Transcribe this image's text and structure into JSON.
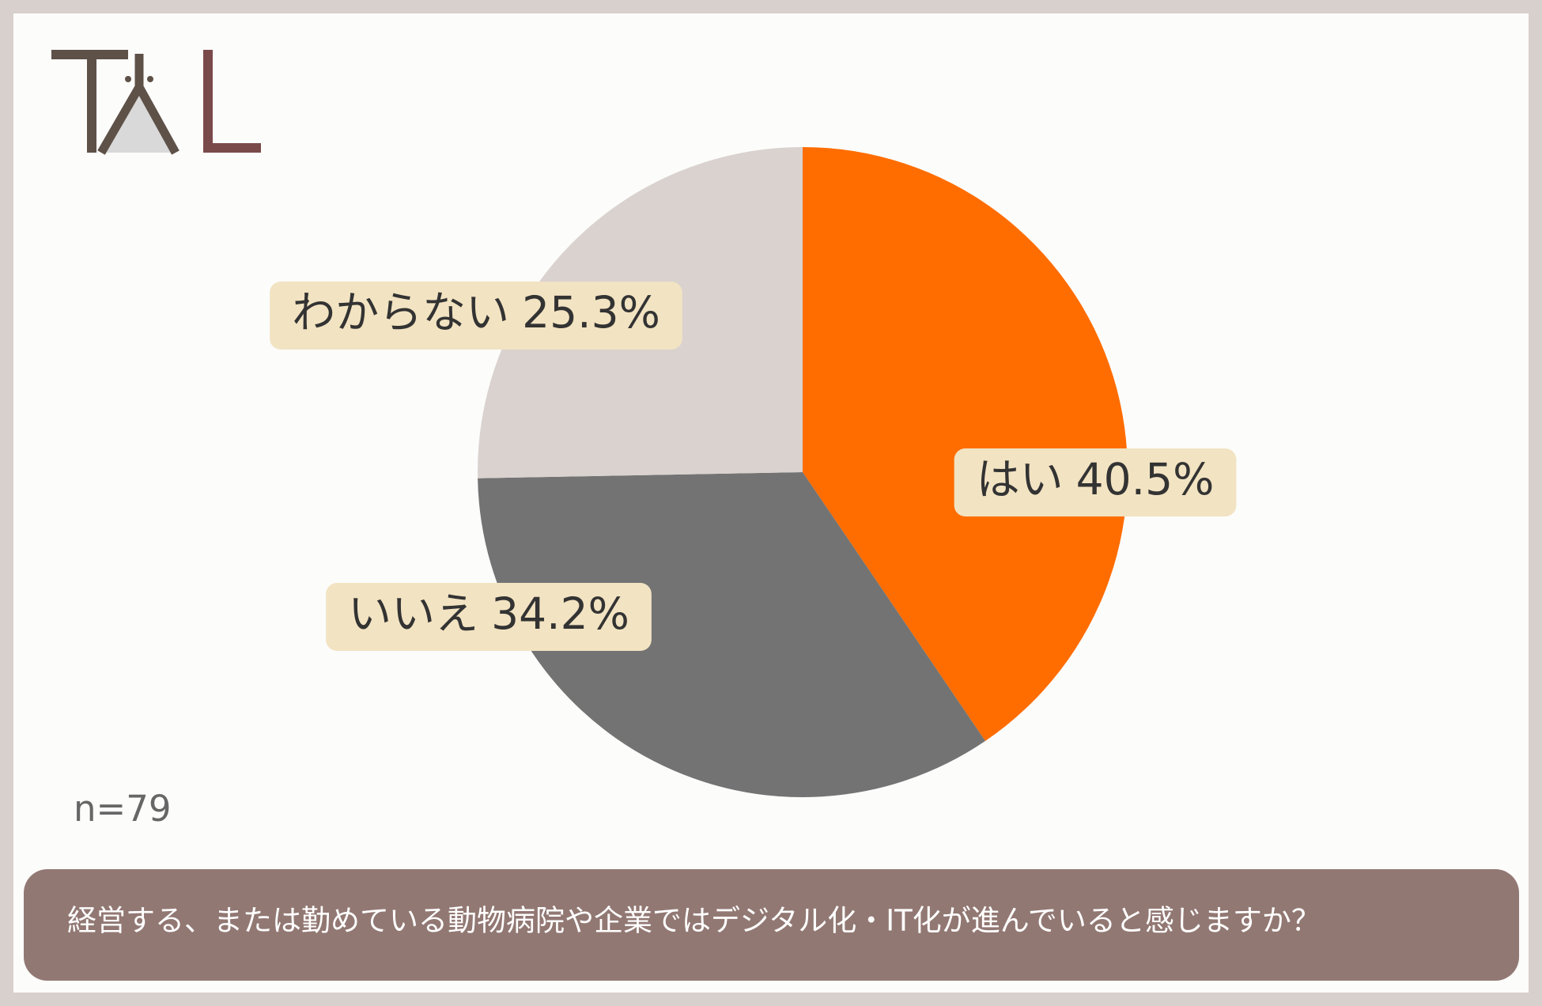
{
  "chart_data": {
    "type": "pie",
    "title": "経営する、または勤めている動物病院や企業ではデジタル化・IT化が進んでいると感じますか？",
    "note": "n=79",
    "categories": [
      "はい",
      "いいえ",
      "わからない"
    ],
    "values": [
      40.5,
      34.2,
      25.3
    ],
    "value_labels": [
      "40.5%",
      "34.2%",
      "25.3%"
    ],
    "colors": [
      "#ff6d00",
      "#737373",
      "#d9d2cf"
    ]
  }
}
